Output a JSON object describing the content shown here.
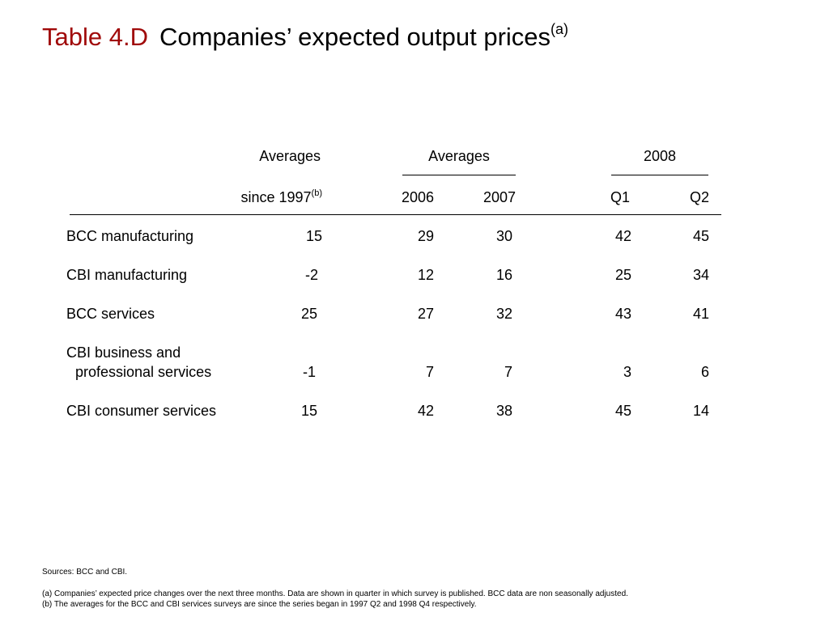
{
  "title": {
    "label": "Table 4.D",
    "text": "Companies’ expected output prices",
    "sup": "(a)"
  },
  "header": {
    "col1_top": "Averages",
    "col1_bottom": "since 1997",
    "col1_sup": "(b)",
    "group1_top": "Averages",
    "group1_years": [
      "2006",
      "2007"
    ],
    "group2_top": "2008",
    "group2_quarters": [
      "Q1",
      "Q2"
    ]
  },
  "rows": [
    {
      "label": "BCC manufacturing",
      "label2": "",
      "values": [
        "15",
        "29",
        "30",
        "42",
        "45"
      ]
    },
    {
      "label": "CBI manufacturing",
      "label2": "",
      "values": [
        "-2",
        "12",
        "16",
        "25",
        "34"
      ]
    },
    {
      "label": "BCC services",
      "label2": "",
      "values": [
        "25",
        "27",
        "32",
        "43",
        "41"
      ]
    },
    {
      "label": "CBI business and",
      "label2": "professional services",
      "values": [
        "-1",
        "7",
        "7",
        "3",
        "6"
      ]
    },
    {
      "label": "CBI consumer services",
      "label2": "",
      "values": [
        "15",
        "42",
        "38",
        "45",
        "14"
      ]
    }
  ],
  "notes": {
    "sources": "Sources:  BCC and CBI.",
    "a": "(a)  Companies’ expected price changes over the next three months.  Data are shown in quarter in which survey is published.  BCC data are non seasonally adjusted.",
    "b": "(b)  The averages for the BCC and CBI services surveys are since the series began in 1997 Q2 and 1998 Q4 respectively."
  }
}
